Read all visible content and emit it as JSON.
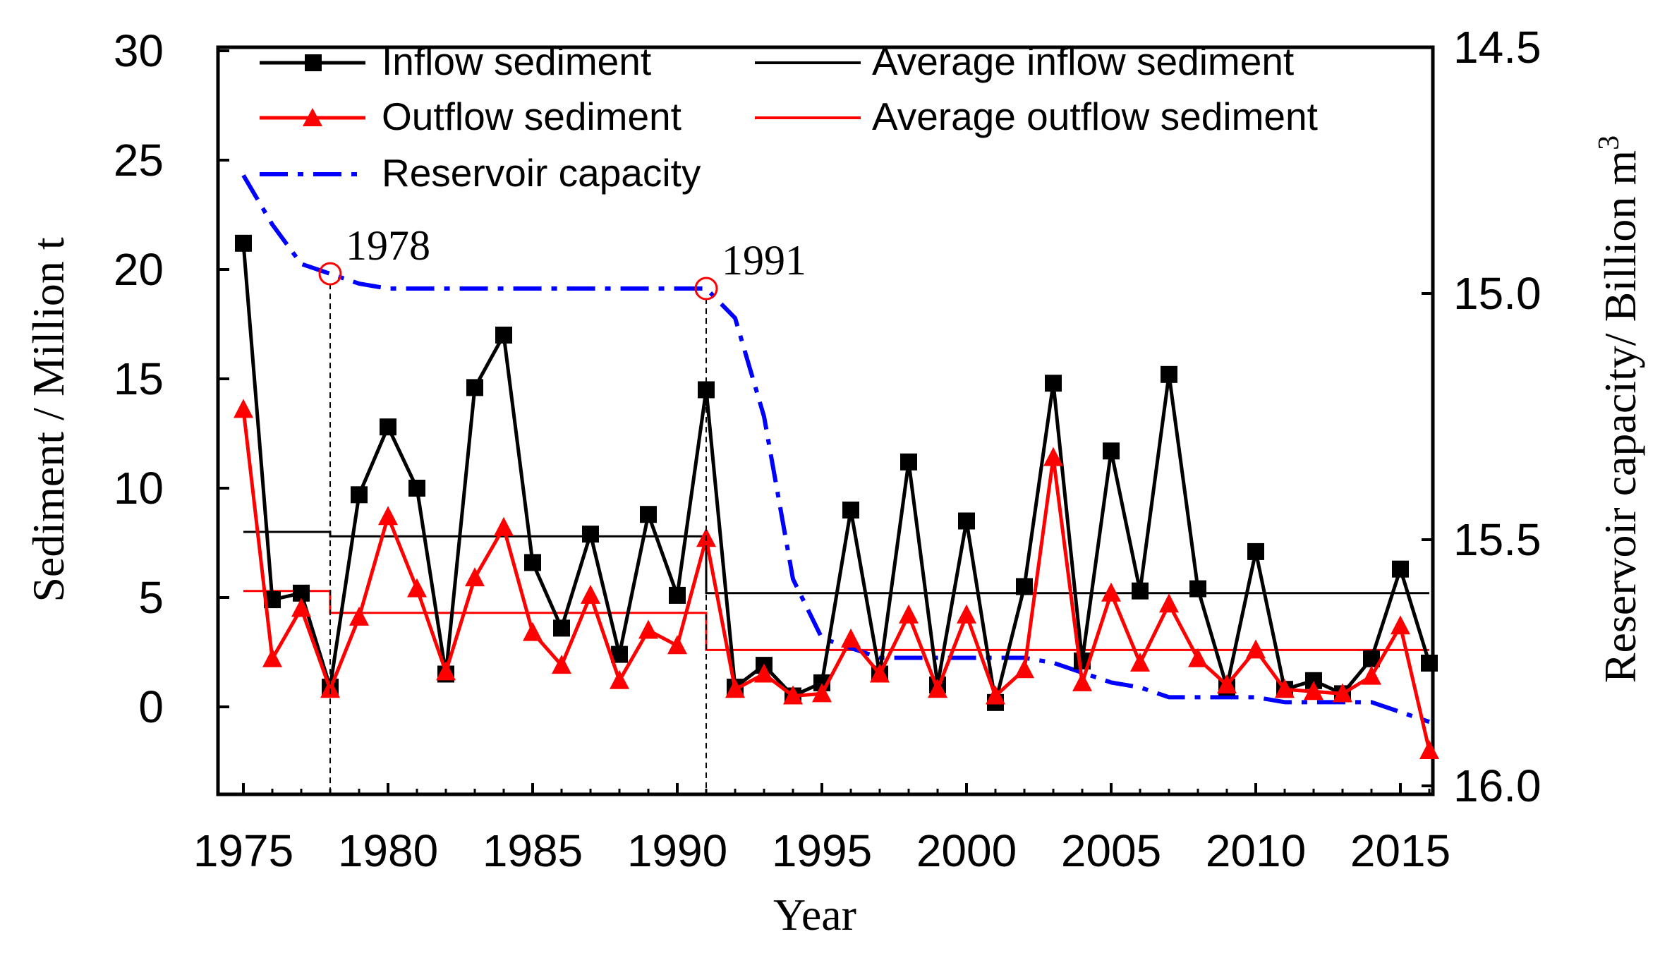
{
  "chart_data": {
    "type": "line",
    "xlabel": "Year",
    "ylabel": "Sediment / Million t",
    "ylabel2": "Reservoir capacity/ Billion m",
    "ylabel2_superscript": "3",
    "xlim": [
      1974,
      2016
    ],
    "ylim": [
      -4,
      30
    ],
    "ylim2": [
      14.5,
      16.0
    ],
    "y2_inverted": true,
    "x_ticks": [
      1975,
      1980,
      1985,
      1990,
      1995,
      2000,
      2005,
      2010,
      2015
    ],
    "y_ticks": [
      0,
      5,
      10,
      15,
      20,
      25,
      30
    ],
    "y2_ticks": [
      "14.5",
      "15.0",
      "15.5",
      "16.0"
    ],
    "years": [
      1975,
      1976,
      1977,
      1978,
      1979,
      1980,
      1981,
      1982,
      1983,
      1984,
      1985,
      1986,
      1987,
      1988,
      1989,
      1990,
      1991,
      1992,
      1993,
      1994,
      1995,
      1996,
      1997,
      1998,
      1999,
      2000,
      2001,
      2002,
      2003,
      2004,
      2005,
      2006,
      2007,
      2008,
      2009,
      2010,
      2011,
      2012,
      2013,
      2014,
      2015,
      2016
    ],
    "series": [
      {
        "name": "Inflow sediment",
        "color": "#000000",
        "marker": "square",
        "axis": "left",
        "values": [
          21.2,
          4.9,
          5.2,
          0.9,
          9.7,
          12.8,
          10.0,
          1.5,
          14.6,
          17.0,
          6.6,
          3.6,
          7.9,
          2.4,
          8.8,
          5.1,
          14.5,
          0.9,
          1.9,
          0.5,
          1.1,
          9.0,
          1.5,
          11.2,
          1.0,
          8.5,
          0.2,
          5.5,
          14.8,
          2.1,
          11.7,
          5.3,
          15.2,
          5.4,
          0.9,
          7.1,
          0.8,
          1.2,
          0.6,
          2.2,
          6.3,
          2.0
        ]
      },
      {
        "name": "Outflow sediment",
        "color": "#ff0000",
        "marker": "triangle",
        "axis": "left",
        "values": [
          13.6,
          2.2,
          4.5,
          0.8,
          4.1,
          8.7,
          5.4,
          1.6,
          5.9,
          8.2,
          3.4,
          1.9,
          5.1,
          1.2,
          3.5,
          2.8,
          7.7,
          0.8,
          1.5,
          0.5,
          0.6,
          3.1,
          1.5,
          4.2,
          0.8,
          4.2,
          0.5,
          1.7,
          11.4,
          1.1,
          5.2,
          2.0,
          4.7,
          2.2,
          1.0,
          2.6,
          0.8,
          0.7,
          0.6,
          1.4,
          3.7,
          -2.0
        ]
      },
      {
        "name": "Reservoir capacity",
        "color": "#0000ff",
        "line_style": "dash-dot",
        "axis": "right",
        "values": [
          14.76,
          14.86,
          14.94,
          14.96,
          14.98,
          14.99,
          14.99,
          14.99,
          14.99,
          14.99,
          14.99,
          14.99,
          14.99,
          14.99,
          14.99,
          14.99,
          14.99,
          15.05,
          15.25,
          15.58,
          15.7,
          15.72,
          15.74,
          15.74,
          15.74,
          15.74,
          15.74,
          15.74,
          15.75,
          15.77,
          15.79,
          15.8,
          15.82,
          15.82,
          15.82,
          15.82,
          15.83,
          15.83,
          15.83,
          15.83,
          15.85,
          15.87
        ]
      }
    ],
    "averages": [
      {
        "name": "Average inflow sediment",
        "color": "#000000",
        "segments": [
          {
            "x_start": 1975,
            "x_end": 1978,
            "value": 8.0
          },
          {
            "x_start": 1978,
            "x_end": 1991,
            "value": 7.8
          },
          {
            "x_start": 1991,
            "x_end": 2016,
            "value": 5.2
          }
        ]
      },
      {
        "name": "Average outflow sediment",
        "color": "#ff0000",
        "segments": [
          {
            "x_start": 1975,
            "x_end": 1978,
            "value": 5.3
          },
          {
            "x_start": 1978,
            "x_end": 1991,
            "value": 4.3
          },
          {
            "x_start": 1991,
            "x_end": 2016,
            "value": 2.6
          }
        ]
      }
    ],
    "annotations": [
      {
        "label": "1978",
        "year": 1978,
        "capacity": 14.96
      },
      {
        "label": "1991",
        "year": 1991,
        "capacity": 14.99
      }
    ],
    "legend": {
      "placement": "top",
      "entries": [
        "Inflow sediment",
        "Average inflow sediment",
        "Outflow sediment",
        "Average outflow sediment",
        "Reservoir capacity"
      ]
    }
  }
}
